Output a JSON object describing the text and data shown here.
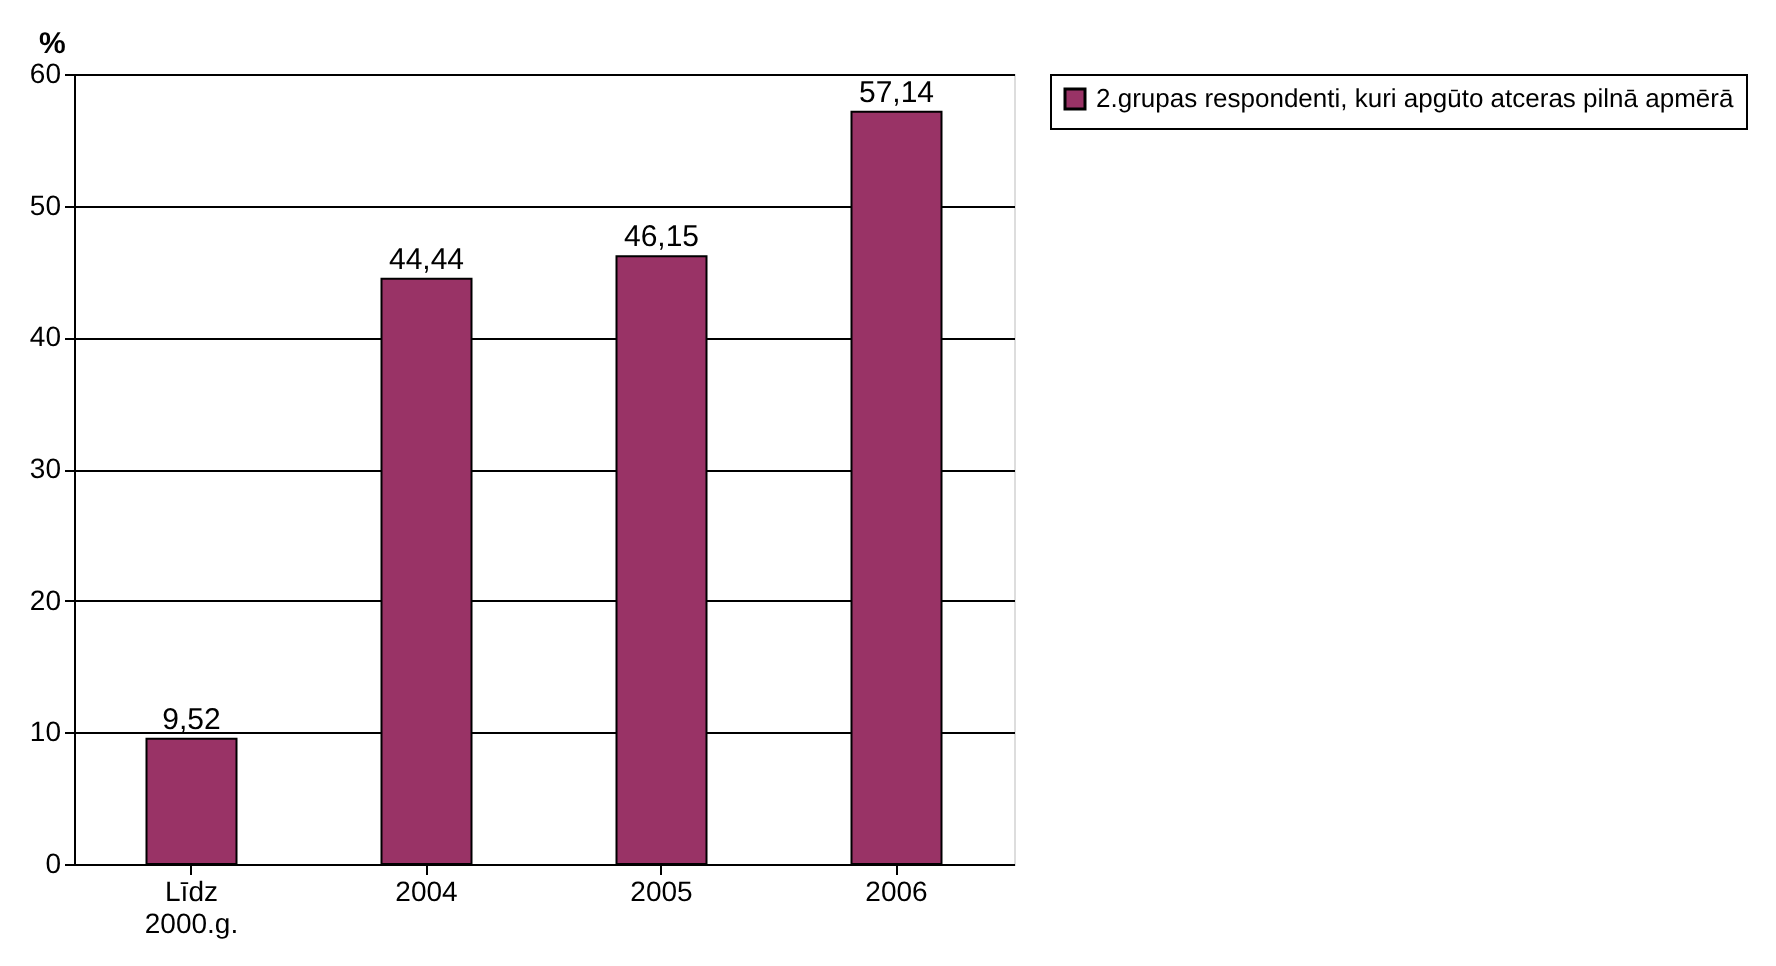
{
  "chart_data": {
    "type": "bar",
    "ylabel": "%",
    "categories": [
      "Līdz 2000.g.",
      "2004",
      "2005",
      "2006"
    ],
    "series": [
      {
        "name": "2.grupas respondenti, kuri apgūto atceras pilnā apmērā",
        "color": "#993366",
        "values": [
          9.52,
          44.44,
          46.15,
          57.14
        ],
        "value_labels": [
          "9,52",
          "44,44",
          "46,15",
          "57,14"
        ]
      }
    ],
    "ylim": [
      0,
      60
    ],
    "yticks": [
      0,
      10,
      20,
      30,
      40,
      50,
      60
    ],
    "grid": "y",
    "legend": "right"
  }
}
